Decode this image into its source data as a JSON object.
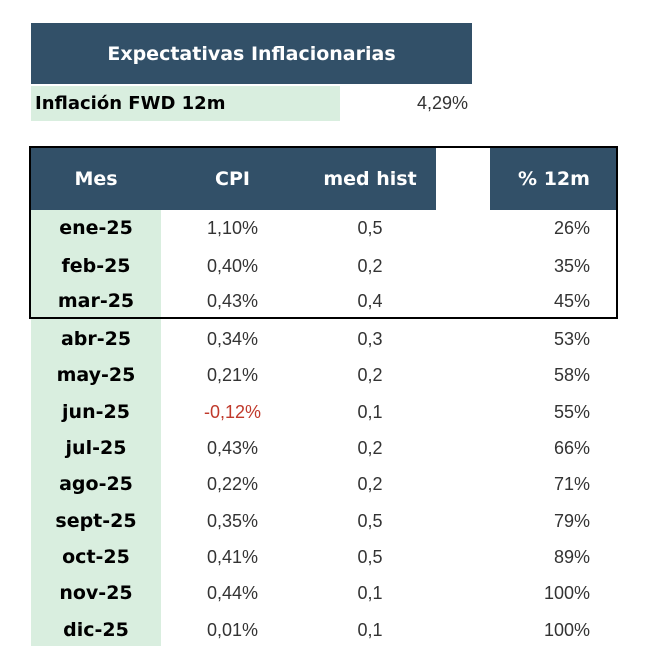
{
  "title": "Expectativas Inflacionarias",
  "fwd": {
    "label": "Inflación FWD 12m",
    "value": "4,29%"
  },
  "table": {
    "headers": {
      "mes": "Mes",
      "cpi": "CPI",
      "med": "med hist",
      "pct": "% 12m"
    },
    "rows": [
      {
        "mes": "ene-25",
        "cpi": "1,10%",
        "med": "0,5",
        "pct": "26%"
      },
      {
        "mes": "feb-25",
        "cpi": "0,40%",
        "med": "0,2",
        "pct": "35%"
      },
      {
        "mes": "mar-25",
        "cpi": "0,43%",
        "med": "0,4",
        "pct": "45%"
      },
      {
        "mes": "abr-25",
        "cpi": "0,34%",
        "med": "0,3",
        "pct": "53%"
      },
      {
        "mes": "may-25",
        "cpi": "0,21%",
        "med": "0,2",
        "pct": "58%"
      },
      {
        "mes": "jun-25",
        "cpi": "-0,12%",
        "med": "0,1",
        "pct": "55%"
      },
      {
        "mes": "jul-25",
        "cpi": "0,43%",
        "med": "0,2",
        "pct": "66%"
      },
      {
        "mes": "ago-25",
        "cpi": "0,22%",
        "med": "0,2",
        "pct": "71%"
      },
      {
        "mes": "sept-25",
        "cpi": "0,35%",
        "med": "0,5",
        "pct": "79%"
      },
      {
        "mes": "oct-25",
        "cpi": "0,41%",
        "med": "0,5",
        "pct": "89%"
      },
      {
        "mes": "nov-25",
        "cpi": "0,44%",
        "med": "0,1",
        "pct": "100%"
      },
      {
        "mes": "dic-25",
        "cpi": "0,01%",
        "med": "0,1",
        "pct": "100%"
      }
    ]
  },
  "colors": {
    "header": "#325068",
    "highlight": "#d9eedf",
    "negative": "#c0392b"
  }
}
